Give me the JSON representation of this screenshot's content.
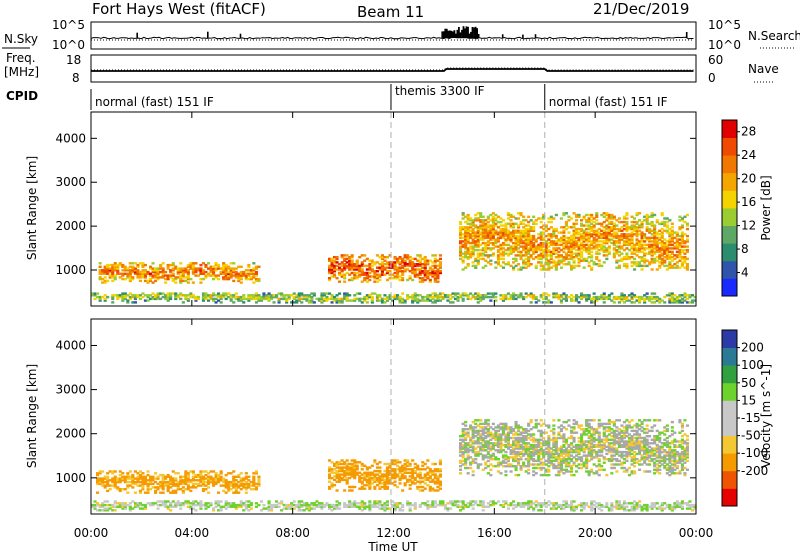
{
  "header": {
    "radar": "Fort Hays West (fitACF)",
    "beam": "Beam 11",
    "date": "21/Dec/2019"
  },
  "strip_labels": {
    "nsky": "N.Sky",
    "nsearch": "N.Search",
    "freq": "Freq.",
    "freq_unit": "[MHz]",
    "nave": "Nave",
    "cpid": "CPID"
  },
  "strip_ticks": {
    "nsky_left": [
      "10^5",
      "10^0"
    ],
    "nsky_right": [
      "10^5",
      "10^0"
    ],
    "freq_left": [
      "18",
      "8"
    ],
    "nave_right": [
      "60",
      "0"
    ]
  },
  "cpid": [
    {
      "label": "normal (fast) 151 IF",
      "start": 0,
      "end": 11.9
    },
    {
      "label": "themis 3300 IF",
      "start": 11.9,
      "end": 18.0
    },
    {
      "label": "normal (fast) 151 IF",
      "start": 18.0,
      "end": 24
    }
  ],
  "time_axis": {
    "label": "Time UT",
    "ticks": [
      "00:00",
      "04:00",
      "08:00",
      "12:00",
      "16:00",
      "20:00",
      "00:00"
    ],
    "range": [
      0,
      24
    ]
  },
  "range_axis": {
    "label": "Slant Range [km]",
    "ticks": [
      "1000",
      "2000",
      "3000",
      "4000"
    ],
    "range": [
      180,
      4600
    ]
  },
  "colors": {
    "power": [
      "#1a2aff",
      "#2f55aa",
      "#2b8c6e",
      "#5ca864",
      "#9acd32",
      "#f5d300",
      "#f5a500",
      "#f07800",
      "#ef4a00",
      "#e10000"
    ],
    "velocity": [
      "#e60000",
      "#ef5500",
      "#f59a00",
      "#f4c832",
      "#c8c8c8",
      "#c8c8c8",
      "#6ed22c",
      "#30a040",
      "#2a7a96",
      "#2c3aa6"
    ],
    "ground_scatter": "#a8a8a8"
  },
  "chart_data": [
    {
      "type": "heatmap",
      "panel": "power",
      "xlabel": "Time UT",
      "ylabel": "Slant Range [km]",
      "colorbar": {
        "label": "Power [dB]",
        "ticks": [
          "4",
          "8",
          "12",
          "16",
          "20",
          "24",
          "28"
        ],
        "range": [
          0,
          30
        ]
      },
      "regions": [
        {
          "t0": 0.3,
          "t1": 6.6,
          "r0": 700,
          "r1": 1150,
          "level": 22
        },
        {
          "t0": 9.4,
          "t1": 13.8,
          "r0": 720,
          "r1": 1350,
          "level": 24
        },
        {
          "t0": 14.6,
          "t1": 23.7,
          "r0": 1000,
          "r1": 2300,
          "level": 20
        },
        {
          "t0": 0.0,
          "t1": 24.0,
          "r0": 250,
          "r1": 480,
          "level": 14
        }
      ]
    },
    {
      "type": "heatmap",
      "panel": "velocity",
      "xlabel": "Time UT",
      "ylabel": "Slant Range [km]",
      "colorbar": {
        "label": "Velocity [m s^-1]",
        "ticks": [
          "200",
          "100",
          "50",
          "15",
          "-15",
          "-50",
          "-100",
          "-200"
        ],
        "range": [
          -250,
          250
        ]
      },
      "regions": [
        {
          "t0": 0.2,
          "t1": 6.6,
          "r0": 650,
          "r1": 1150,
          "velocity": -60
        },
        {
          "t0": 9.4,
          "t1": 13.8,
          "r0": 700,
          "r1": 1400,
          "velocity": -70
        },
        {
          "t0": 14.6,
          "t1": 23.7,
          "r0": 1050,
          "r1": 2300,
          "velocity": 0
        },
        {
          "t0": 0.0,
          "t1": 24.0,
          "r0": 250,
          "r1": 480,
          "velocity": 10
        }
      ]
    }
  ]
}
